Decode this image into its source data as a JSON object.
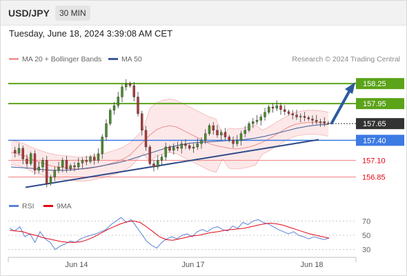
{
  "header": {
    "symbol": "USD/JPY",
    "timeframe": "30 MIN"
  },
  "timestamp": "Tuesday, June 18, 2024 3:39:08 AM CET",
  "legend": [
    {
      "label": "MA 20 + Bollinger Bands",
      "color": "#f29c9c"
    },
    {
      "label": "MA 50",
      "color": "#3b5998"
    }
  ],
  "rsi_legend": [
    {
      "label": "RSI",
      "color": "#5b82d6"
    },
    {
      "label": "9MA",
      "color": "#e30613"
    }
  ],
  "credit": "Research © 2024 Trading Central",
  "chart_data": {
    "type": "candlestick",
    "x_ticks": [
      "Jun 14",
      "Jun 17",
      "Jun 18"
    ],
    "ylim": [
      156.69,
      158.51
    ],
    "levels": [
      {
        "value": 158.25,
        "label": "158.25",
        "kind": "resistance",
        "color": "#5ba319"
      },
      {
        "value": 157.95,
        "label": "157.95",
        "kind": "resistance",
        "color": "#5ba319"
      },
      {
        "value": 157.65,
        "label": "157.65",
        "kind": "last",
        "color": "#333333"
      },
      {
        "value": 157.4,
        "label": "157.40",
        "kind": "pivot",
        "color": "#3c7ae4"
      },
      {
        "value": 157.1,
        "label": "157.10",
        "kind": "support",
        "color": "#e30613"
      },
      {
        "value": 156.85,
        "label": "156.85",
        "kind": "support",
        "color": "#e30613"
      }
    ],
    "price_series": [
      157.25,
      157.21,
      157.28,
      157.12,
      157.05,
      157.2,
      156.95,
      157.0,
      157.1,
      156.75,
      156.85,
      156.95,
      157.0,
      157.1,
      156.97,
      157.02,
      157.0,
      157.06,
      157.1,
      157.08,
      157.15,
      157.1,
      157.2,
      157.45,
      157.65,
      157.85,
      157.92,
      158.05,
      158.2,
      158.25,
      158.22,
      158.05,
      157.8,
      157.55,
      157.3,
      157.05,
      157.0,
      157.1,
      157.15,
      157.3,
      157.25,
      157.3,
      157.28,
      157.35,
      157.32,
      157.28,
      157.3,
      157.35,
      157.4,
      157.5,
      157.62,
      157.55,
      157.48,
      157.52,
      157.45,
      157.4,
      157.35,
      157.4,
      157.5,
      157.55,
      157.65,
      157.68,
      157.7,
      157.75,
      157.82,
      157.9,
      157.88,
      157.92,
      157.86,
      157.83,
      157.8,
      157.78,
      157.75,
      157.76,
      157.74,
      157.72,
      157.7,
      157.68,
      157.68,
      157.66,
      157.66
    ],
    "ma20": [
      157.22,
      157.2,
      157.17,
      157.12,
      157.08,
      157.05,
      157.02,
      157.0,
      156.99,
      156.98,
      156.97,
      156.97,
      156.98,
      157.0,
      157.02,
      157.05,
      157.08,
      157.12,
      157.18,
      157.28,
      157.38,
      157.48,
      157.56,
      157.6,
      157.62,
      157.6,
      157.55,
      157.5,
      157.45,
      157.4,
      157.35,
      157.32,
      157.3,
      157.28,
      157.27,
      157.28,
      157.3,
      157.33,
      157.37,
      157.42,
      157.48,
      157.54,
      157.6,
      157.64,
      157.66,
      157.67,
      157.67,
      157.66,
      157.64
    ],
    "ma50": [
      157.0,
      156.99,
      156.98,
      156.96,
      156.95,
      156.95,
      156.96,
      156.98,
      157.0,
      157.03,
      157.06,
      157.1,
      157.15,
      157.2,
      157.25,
      157.3,
      157.33,
      157.36,
      157.37,
      157.38,
      157.39,
      157.4,
      157.41,
      157.43,
      157.46,
      157.5,
      157.54,
      157.58,
      157.61,
      157.63,
      157.64
    ],
    "rsi": {
      "ylim": [
        20,
        80
      ],
      "ticks": [
        70,
        50,
        30
      ],
      "rsi_values": [
        60,
        56,
        62,
        48,
        52,
        40,
        55,
        45,
        40,
        30,
        35,
        38,
        42,
        40,
        45,
        48,
        50,
        52,
        55,
        58,
        65,
        70,
        75,
        68,
        72,
        62,
        52,
        42,
        36,
        32,
        40,
        45,
        48,
        45,
        50,
        52,
        48,
        55,
        58,
        55,
        60,
        62,
        58,
        56,
        63,
        60,
        68,
        65,
        70,
        72,
        68,
        66,
        62,
        58,
        55,
        52,
        55,
        50,
        48,
        45,
        48,
        46,
        44,
        46
      ],
      "ma9_values": [
        57,
        56,
        55,
        52,
        50,
        47,
        45,
        43,
        41,
        40,
        40,
        41,
        44,
        48,
        53,
        58,
        62,
        66,
        69,
        70,
        68,
        62,
        55,
        48,
        44,
        43,
        45,
        47,
        49,
        50,
        52,
        54,
        55,
        57,
        58,
        59,
        60,
        62,
        64,
        66,
        67,
        66,
        64,
        61,
        58,
        55,
        52,
        50,
        48,
        46
      ]
    }
  }
}
